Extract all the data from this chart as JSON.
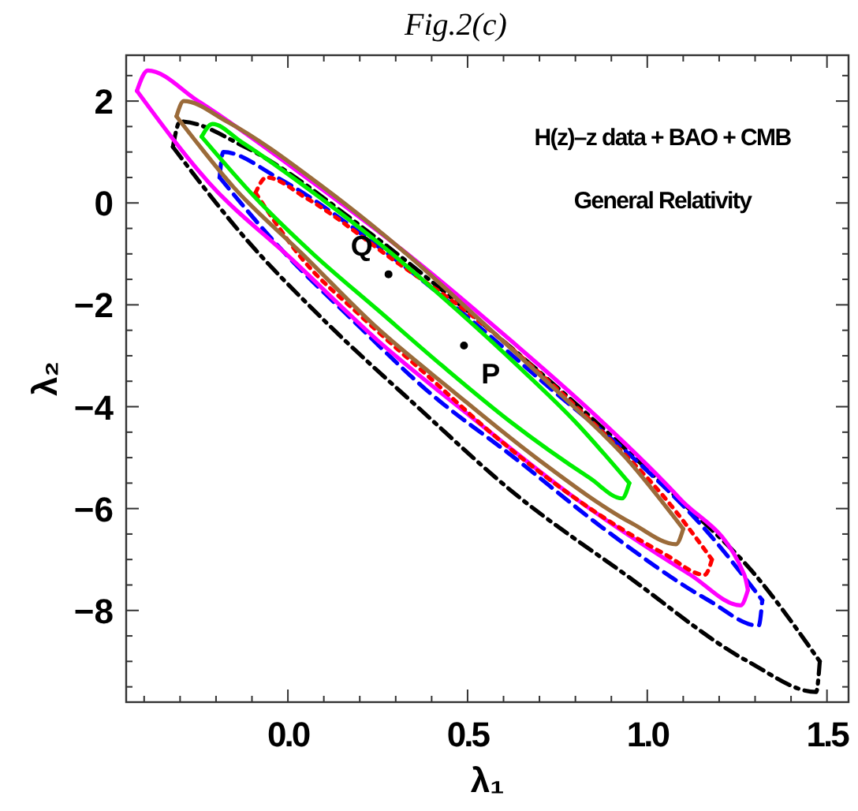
{
  "chart_data": {
    "type": "line",
    "title": "Fig.2(c)",
    "xlabel": "λ₁",
    "ylabel": "λ₂",
    "xlim": [
      -0.45,
      1.56
    ],
    "ylim": [
      -9.8,
      2.9
    ],
    "xticks": [
      {
        "value": -0.4,
        "label": null
      },
      {
        "value": -0.3,
        "label": null
      },
      {
        "value": -0.2,
        "label": null
      },
      {
        "value": -0.1,
        "label": null
      },
      {
        "value": 0,
        "label": "0.0"
      },
      {
        "value": 0.1,
        "label": null
      },
      {
        "value": 0.2,
        "label": null
      },
      {
        "value": 0.3,
        "label": null
      },
      {
        "value": 0.4,
        "label": null
      },
      {
        "value": 0.5,
        "label": "0.5"
      },
      {
        "value": 0.6,
        "label": null
      },
      {
        "value": 0.7,
        "label": null
      },
      {
        "value": 0.8,
        "label": null
      },
      {
        "value": 0.9,
        "label": null
      },
      {
        "value": 1,
        "label": "1.0"
      },
      {
        "value": 1.1,
        "label": null
      },
      {
        "value": 1.2,
        "label": null
      },
      {
        "value": 1.3,
        "label": null
      },
      {
        "value": 1.4,
        "label": null
      },
      {
        "value": 1.5,
        "label": "1.5"
      }
    ],
    "yticks": [
      {
        "value": -9.5,
        "label": null
      },
      {
        "value": -9,
        "label": null
      },
      {
        "value": -8.5,
        "label": null
      },
      {
        "value": -8,
        "label": "−8"
      },
      {
        "value": -7.5,
        "label": null
      },
      {
        "value": -7,
        "label": null
      },
      {
        "value": -6.5,
        "label": null
      },
      {
        "value": -6,
        "label": "−6"
      },
      {
        "value": -5.5,
        "label": null
      },
      {
        "value": -5,
        "label": null
      },
      {
        "value": -4.5,
        "label": null
      },
      {
        "value": -4,
        "label": "−4"
      },
      {
        "value": -3.5,
        "label": null
      },
      {
        "value": -3,
        "label": null
      },
      {
        "value": -2.5,
        "label": null
      },
      {
        "value": -2,
        "label": "−2"
      },
      {
        "value": -1.5,
        "label": null
      },
      {
        "value": -1,
        "label": null
      },
      {
        "value": -0.5,
        "label": null
      },
      {
        "value": 0,
        "label": "0"
      },
      {
        "value": 0.5,
        "label": null
      },
      {
        "value": 1,
        "label": null
      },
      {
        "value": 1.5,
        "label": null
      },
      {
        "value": 2,
        "label": "2"
      },
      {
        "value": 2.5,
        "label": null
      }
    ],
    "grid": false,
    "series": [
      {
        "type": "line",
        "color": "#000000",
        "line_style": "dashdot",
        "x": [
          -0.32,
          -0.3,
          -0.12,
          0.23,
          0.53,
          0.81,
          1.07,
          1.3,
          1.48
        ],
        "values": [
          1.1,
          1.6,
          1.1,
          -0.6,
          -2.3,
          -4,
          -5.7,
          -7.3,
          -9
        ]
      },
      {
        "type": "line",
        "color": "#000000",
        "line_style": "dashdot",
        "x": [
          -0.32,
          -0.13,
          0.1,
          0.36,
          0.63,
          0.94,
          1.28,
          1.47,
          1.48
        ],
        "values": [
          1.1,
          -0.6,
          -2.3,
          -4,
          -5.7,
          -7.3,
          -9,
          -9.6,
          -9
        ]
      },
      {
        "type": "line",
        "color": "#0000ff",
        "line_style": "dashed",
        "x": [
          -0.19,
          -0.18,
          -0.03,
          0.26,
          0.51,
          0.74,
          0.96,
          1.16,
          1.32
        ],
        "values": [
          0.5,
          1,
          0.5,
          -0.9,
          -2.3,
          -3.7,
          -5,
          -6.4,
          -7.8
        ]
      },
      {
        "type": "line",
        "color": "#0000ff",
        "line_style": "dashed",
        "x": [
          -0.19,
          -0.02,
          0.18,
          0.39,
          0.63,
          0.88,
          1.17,
          1.31,
          1.32
        ],
        "values": [
          0.5,
          -0.9,
          -2.3,
          -3.7,
          -5,
          -6.4,
          -7.8,
          -8.3,
          -7.8
        ]
      },
      {
        "type": "line",
        "color": "#ff00ff",
        "line_style": "solid",
        "x": [
          -0.42,
          -0.39,
          -0.25,
          0.07,
          0.35,
          0.62,
          0.86,
          1.09,
          1.27,
          1.28
        ],
        "values": [
          2.2,
          2.6,
          2,
          0.4,
          -1.1,
          -2.7,
          -4.2,
          -5.8,
          -7.3,
          -7.6
        ]
      },
      {
        "type": "line",
        "color": "#ff00ff",
        "line_style": "solid",
        "x": [
          -0.42,
          -0.22,
          0.01,
          0.25,
          0.51,
          0.8,
          1.12,
          1.26,
          1.28
        ],
        "values": [
          2.2,
          0.4,
          -1.1,
          -2.7,
          -4.2,
          -5.8,
          -7.3,
          -7.9,
          -7.6
        ]
      },
      {
        "type": "line",
        "color": "#ff0000",
        "line_style": "dotted",
        "x": [
          -0.09,
          -0.06,
          0.05,
          0.29,
          0.51,
          0.71,
          0.89,
          1.05,
          1.18
        ],
        "values": [
          0.2,
          0.5,
          0.1,
          -1.1,
          -2.2,
          -3.4,
          -4.6,
          -5.8,
          -7
        ]
      },
      {
        "type": "line",
        "color": "#ff0000",
        "line_style": "dotted",
        "x": [
          -0.09,
          0.04,
          0.2,
          0.39,
          0.58,
          0.8,
          1.05,
          1.16,
          1.18
        ],
        "values": [
          0.2,
          -1.1,
          -2.2,
          -3.4,
          -4.6,
          -5.8,
          -6.9,
          -7.3,
          -7
        ]
      },
      {
        "type": "line",
        "color": "#9b6b3a",
        "line_style": "solid",
        "x": [
          -0.31,
          -0.29,
          -0.17,
          0.1,
          0.33,
          0.55,
          0.75,
          0.94,
          1.1
        ],
        "values": [
          1.7,
          2,
          1.6,
          0.3,
          -1,
          -2.4,
          -3.7,
          -5,
          -6.4
        ]
      },
      {
        "type": "line",
        "color": "#9b6b3a",
        "line_style": "solid",
        "x": [
          -0.31,
          -0.15,
          0.04,
          0.24,
          0.46,
          0.69,
          0.96,
          1.08,
          1.1
        ],
        "values": [
          1.7,
          0.3,
          -1,
          -2.4,
          -3.7,
          -5,
          -6.3,
          -6.7,
          -6.4
        ]
      },
      {
        "type": "line",
        "color": "#00ee00",
        "line_style": "solid",
        "x": [
          -0.24,
          -0.21,
          -0.13,
          0.09,
          0.29,
          0.47,
          0.64,
          0.8,
          0.95
        ],
        "values": [
          1.3,
          1.55,
          1.2,
          0.1,
          -1,
          -2.1,
          -3.2,
          -4.3,
          -5.5
        ]
      },
      {
        "type": "line",
        "color": "#00ee00",
        "line_style": "solid",
        "x": [
          -0.24,
          -0.09,
          0.07,
          0.25,
          0.43,
          0.62,
          0.84,
          0.93,
          0.95
        ],
        "values": [
          1.3,
          0.1,
          -1,
          -2.1,
          -3.2,
          -4.3,
          -5.4,
          -5.8,
          -5.5
        ]
      },
      {
        "type": "scatter",
        "color": "#000000",
        "marker": "circle",
        "x": [
          0.28,
          0.49
        ],
        "values": [
          -1.4,
          -2.8
        ]
      }
    ],
    "annotations": [
      {
        "text": "Q",
        "x": 0.28,
        "y": -1.4
      },
      {
        "text": "P",
        "x": 0.49,
        "y": -2.8
      },
      "H(z)–z data + BAO + CMB",
      "General Relativity"
    ]
  }
}
